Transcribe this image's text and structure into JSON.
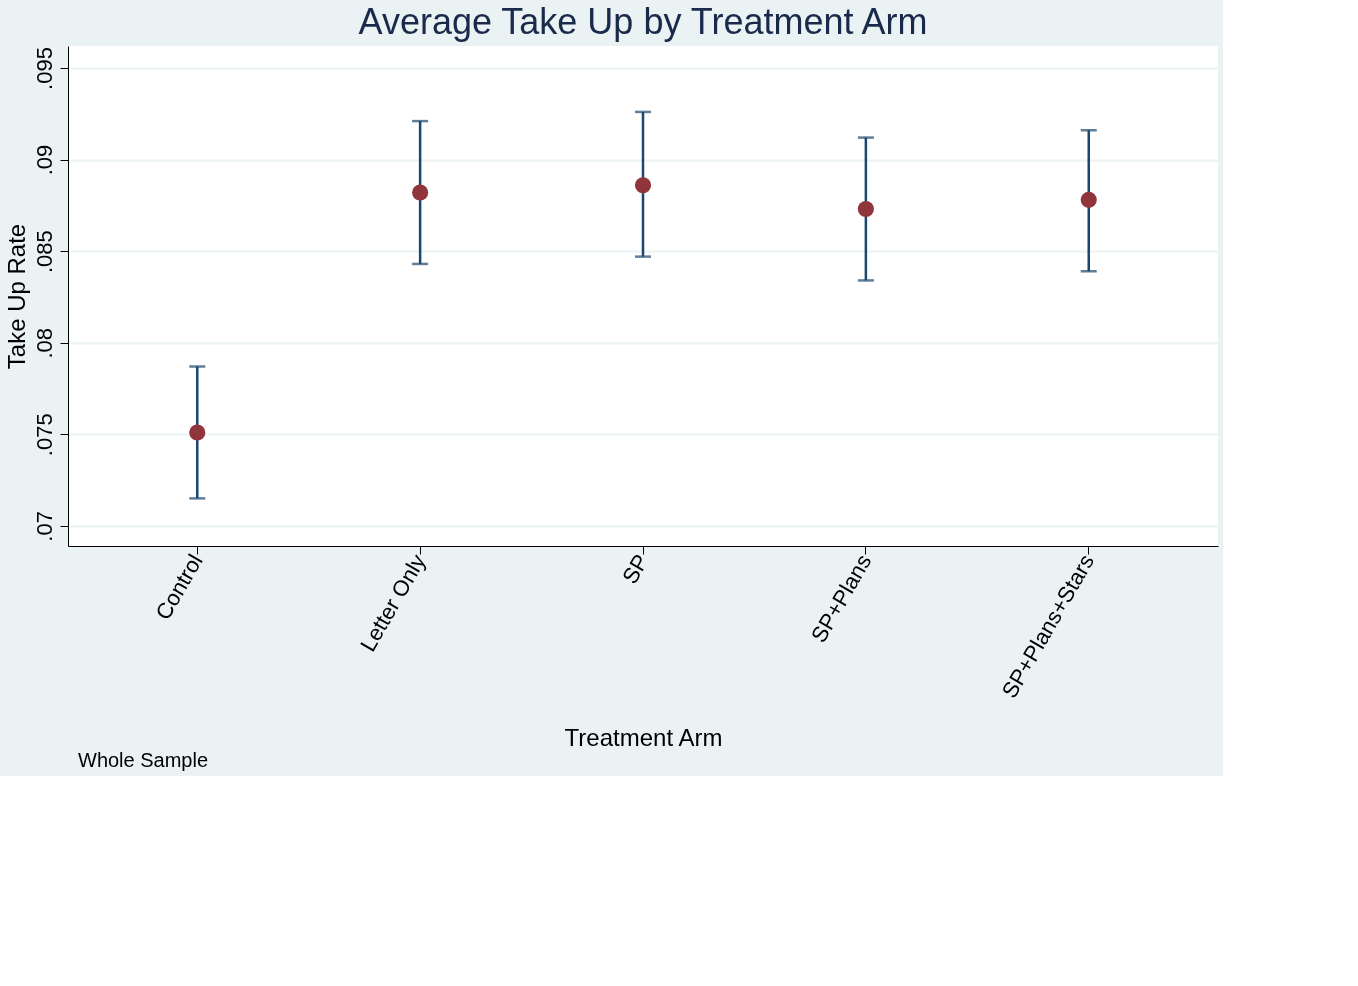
{
  "chart_data": {
    "type": "scatter",
    "title": "Average Take Up by Treatment Arm",
    "xlabel": "Treatment Arm",
    "ylabel": "Take Up Rate",
    "categories": [
      "Control",
      "Letter Only",
      "SP",
      "SP+Plans",
      "SP+Plans+Stars"
    ],
    "series": [
      {
        "color": "#90353b",
        "values": [
          0.0751,
          0.0882,
          0.0886,
          0.0873,
          0.0878
        ],
        "errors": [
          [
            0.0715,
            0.0787
          ],
          [
            0.0843,
            0.0921
          ],
          [
            0.0847,
            0.0926
          ],
          [
            0.0834,
            0.0912
          ],
          [
            0.0839,
            0.0916
          ]
        ]
      }
    ],
    "ylim": [
      0.0689,
      0.0962
    ],
    "yticks": [
      {
        "value": 0.07,
        "label": ".07"
      },
      {
        "value": 0.075,
        "label": ".075"
      },
      {
        "value": 0.08,
        "label": ".08"
      },
      {
        "value": 0.085,
        "label": ".085"
      },
      {
        "value": 0.09,
        "label": ".09"
      },
      {
        "value": 0.095,
        "label": ".095"
      }
    ],
    "grid": "y",
    "marker": "circle",
    "annotations": [
      "Whole Sample"
    ]
  }
}
